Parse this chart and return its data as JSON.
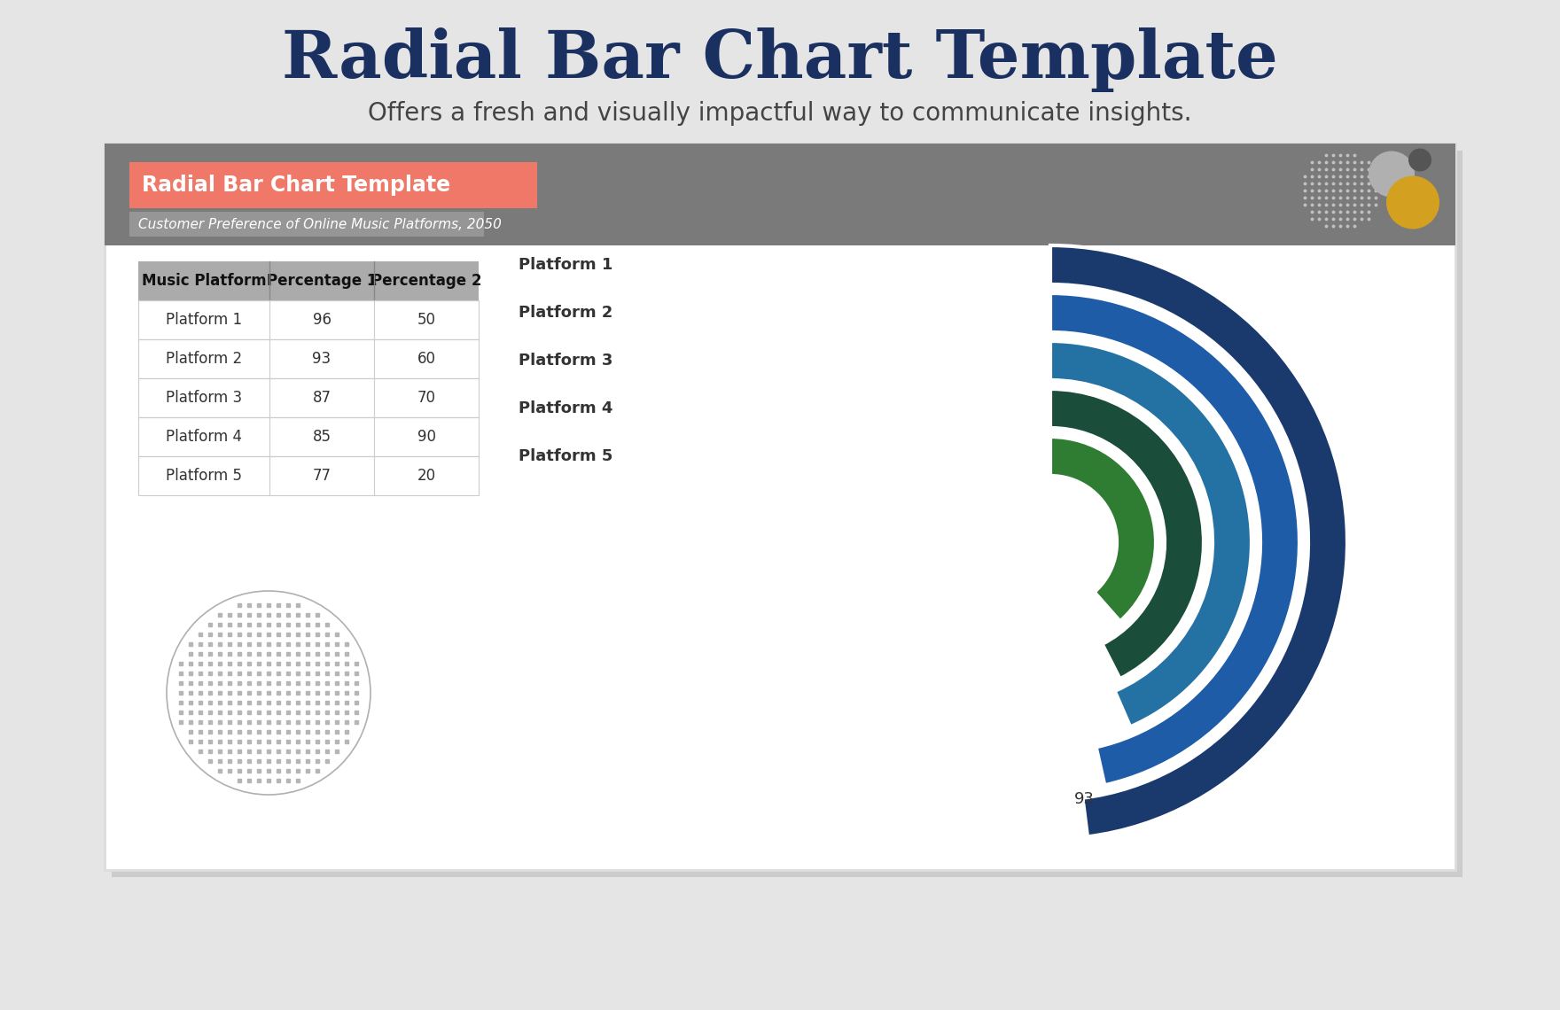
{
  "title": "Radial Bar Chart Template",
  "subtitle": "Offers a fresh and visually impactful way to communicate insights.",
  "card_title": "Radial Bar Chart Template",
  "card_subtitle": "Customer Preference of Online Music Platforms, 2050",
  "platforms": [
    "Platform 1",
    "Platform 2",
    "Platform 3",
    "Platform 4",
    "Platform 5"
  ],
  "pct1": [
    96,
    93,
    87,
    85,
    77
  ],
  "pct2": [
    50,
    60,
    70,
    90,
    20
  ],
  "ring_colors": [
    "#1a3a6e",
    "#1e5ca8",
    "#2471a3",
    "#1a4d3a",
    "#2e7d32"
  ],
  "background_color": "#e5e5e5",
  "header_bg": "#7a7a7a",
  "title_banner_color": "#f07868",
  "subtitle_banner_color": "#969696",
  "annotation_value": "93",
  "table_header_bg": "#a8a8a8",
  "title_color": "#1a3060",
  "subtitle_color": "#444444"
}
